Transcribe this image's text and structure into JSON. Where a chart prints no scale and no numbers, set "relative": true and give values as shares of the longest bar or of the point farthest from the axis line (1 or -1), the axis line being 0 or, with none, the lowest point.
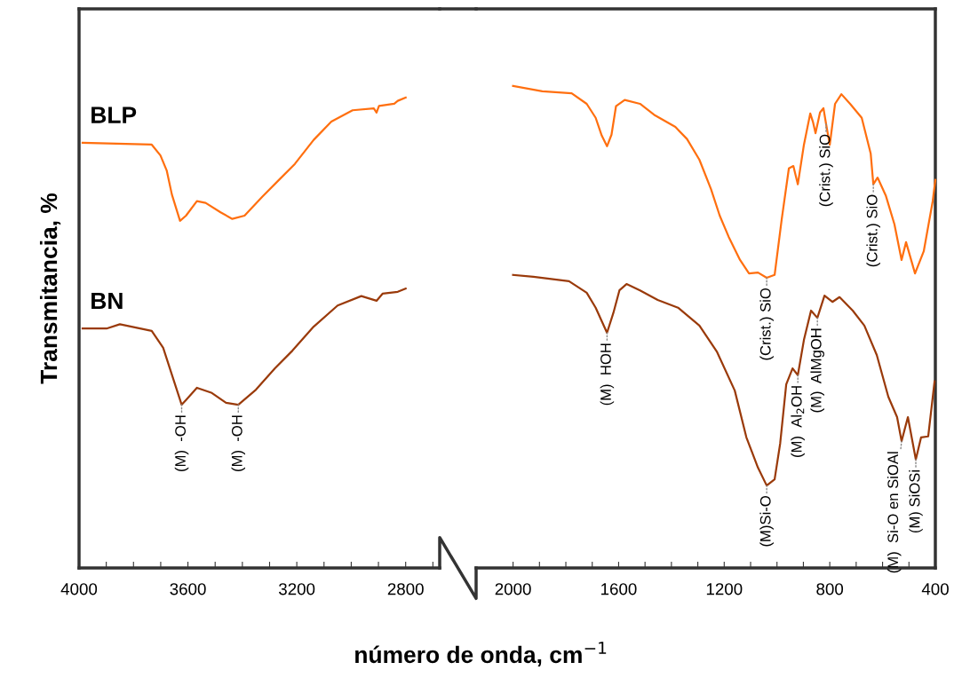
{
  "chart_data": [
    {
      "type": "line",
      "ylabel": "Transmitancia, %",
      "xlabel": "número de onda, cm$^{−1}$",
      "relative": true,
      "tick_labels": "x",
      "grid": false,
      "legend": false,
      "xlim": [
        4000,
        2675
      ],
      "xticks": [
        4000,
        {
          "value": 3900,
          "label": null
        },
        {
          "value": 3800,
          "label": null
        },
        {
          "value": 3700,
          "label": null
        },
        3600,
        {
          "value": 3500,
          "label": null
        },
        {
          "value": 3400,
          "label": null
        },
        {
          "value": 3300,
          "label": null
        },
        3200,
        {
          "value": 3100,
          "label": null
        },
        {
          "value": 3000,
          "label": null
        },
        {
          "value": 2900,
          "label": null
        },
        2800,
        {
          "value": 2700,
          "label": null
        }
      ],
      "series": [
        {
          "name": "BLP",
          "color": "#ff6f0f",
          "x": [
            3987,
            3733,
            3701,
            3678,
            3659,
            3629,
            3607,
            3567,
            3535,
            3480,
            3437,
            3392,
            3327,
            3262,
            3207,
            3138,
            3073,
            2995,
            2917,
            2907,
            2898,
            2842,
            2829,
            2800
          ],
          "values": [
            0.904,
            0.9,
            0.877,
            0.845,
            0.794,
            0.738,
            0.749,
            0.78,
            0.776,
            0.756,
            0.742,
            0.749,
            0.789,
            0.827,
            0.859,
            0.91,
            0.949,
            0.973,
            0.977,
            0.968,
            0.982,
            0.987,
            0.993,
            1.0
          ]
        },
        {
          "name": "BN",
          "color": "#9a3a0a",
          "x": [
            3987,
            3899,
            3850,
            3733,
            3691,
            3659,
            3623,
            3607,
            3567,
            3512,
            3460,
            3415,
            3350,
            3281,
            3216,
            3138,
            3050,
            2963,
            2907,
            2885,
            2829,
            2800
          ],
          "values": [
            0.509,
            0.509,
            0.518,
            0.504,
            0.468,
            0.411,
            0.347,
            0.357,
            0.383,
            0.372,
            0.351,
            0.347,
            0.379,
            0.424,
            0.462,
            0.513,
            0.558,
            0.578,
            0.568,
            0.583,
            0.587,
            0.594
          ]
        }
      ],
      "annotations": [
        {
          "text": "(M)  -OH",
          "x": 3623,
          "y": 0.347
        },
        {
          "text": "(M)  -OH",
          "x": 3415,
          "y": 0.347
        }
      ]
    },
    {
      "type": "line",
      "relative": true,
      "tick_labels": "x",
      "grid": false,
      "legend": false,
      "xlim": [
        2140,
        400
      ],
      "xticks": [
        2000,
        {
          "value": 1900,
          "label": null
        },
        {
          "value": 1800,
          "label": null
        },
        {
          "value": 1700,
          "label": null
        },
        1600,
        {
          "value": 1500,
          "label": null
        },
        {
          "value": 1400,
          "label": null
        },
        {
          "value": 1300,
          "label": null
        },
        1200,
        {
          "value": 1100,
          "label": null
        },
        {
          "value": 1000,
          "label": null
        },
        {
          "value": 900,
          "label": null
        },
        800,
        {
          "value": 700,
          "label": null
        },
        {
          "value": 600,
          "label": null
        },
        {
          "value": 500,
          "label": null
        },
        400
      ],
      "series": [
        {
          "color": "#ff6f0f",
          "x": [
            2000,
            1889,
            1778,
            1721,
            1687,
            1664,
            1644,
            1627,
            1610,
            1577,
            1519,
            1462,
            1385,
            1341,
            1294,
            1250,
            1217,
            1183,
            1140,
            1106,
            1072,
            1039,
            1009,
            982,
            955,
            938,
            921,
            898,
            874,
            864,
            854,
            837,
            824,
            814,
            800,
            780,
            756,
            723,
            679,
            645,
            635,
            619,
            588,
            555,
            528,
            511,
            477,
            444,
            410,
            400
          ],
          "values": [
            1.0,
            0.989,
            0.985,
            0.963,
            0.934,
            0.897,
            0.875,
            0.899,
            0.958,
            0.971,
            0.963,
            0.939,
            0.915,
            0.89,
            0.847,
            0.786,
            0.731,
            0.687,
            0.639,
            0.611,
            0.613,
            0.602,
            0.608,
            0.724,
            0.829,
            0.834,
            0.796,
            0.878,
            0.943,
            0.926,
            0.902,
            0.945,
            0.954,
            0.921,
            0.878,
            0.963,
            0.983,
            0.963,
            0.934,
            0.86,
            0.796,
            0.81,
            0.773,
            0.713,
            0.639,
            0.676,
            0.611,
            0.657,
            0.761,
            0.805
          ]
        },
        {
          "color": "#9a3a0a",
          "x": [
            2000,
            1923,
            1788,
            1721,
            1687,
            1644,
            1620,
            1597,
            1570,
            1519,
            1452,
            1375,
            1294,
            1227,
            1160,
            1116,
            1072,
            1039,
            1009,
            988,
            965,
            941,
            921,
            898,
            871,
            847,
            820,
            790,
            763,
            713,
            669,
            622,
            578,
            545,
            528,
            504,
            474,
            454,
            427,
            403
          ],
          "values": [
            0.608,
            0.604,
            0.595,
            0.571,
            0.54,
            0.488,
            0.529,
            0.576,
            0.589,
            0.576,
            0.556,
            0.54,
            0.503,
            0.448,
            0.368,
            0.271,
            0.208,
            0.171,
            0.184,
            0.258,
            0.381,
            0.414,
            0.4,
            0.473,
            0.534,
            0.519,
            0.565,
            0.552,
            0.562,
            0.534,
            0.503,
            0.442,
            0.355,
            0.313,
            0.263,
            0.313,
            0.225,
            0.271,
            0.273,
            0.387
          ]
        }
      ],
      "annotations": [
        {
          "text": "(M)  HOH",
          "x": 1644,
          "y": 0.488
        },
        {
          "text": "(Crist.) SiO",
          "x": 1039,
          "y": 0.602
        },
        {
          "text": "(M)Si-O",
          "x": 1039,
          "y": 0.171
        },
        {
          "text": "(M)  Al$_{2}$OH",
          "x": 921,
          "y": 0.4
        },
        {
          "text": "(M)  AlMgOH",
          "x": 847,
          "y": 0.519
        },
        {
          "text": "(Crist.) SiO",
          "x": 814,
          "y": 0.921
        },
        {
          "text": "(Crist.) SiO",
          "x": 635,
          "y": 0.796
        },
        {
          "text": "(M)  Si-O en SiOAl",
          "x": 528,
          "y": 0.263
        },
        {
          "text": "(M) SiOSi",
          "x": 474,
          "y": 0.225
        }
      ]
    }
  ]
}
